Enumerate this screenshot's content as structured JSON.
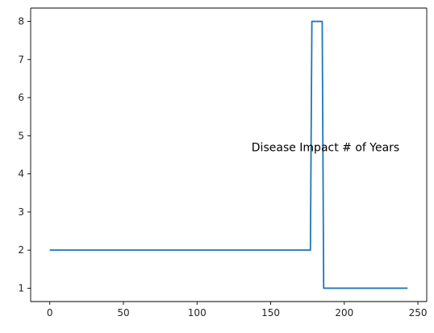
{
  "chart_data": {
    "type": "line",
    "title": "",
    "xlabel": "",
    "ylabel": "",
    "xlim": [
      -13,
      256
    ],
    "ylim": [
      0.65,
      8.35
    ],
    "x_ticks": [
      0,
      50,
      100,
      150,
      200,
      250
    ],
    "y_ticks": [
      1,
      2,
      3,
      4,
      5,
      6,
      7,
      8
    ],
    "x_tick_labels": [
      "0",
      "50",
      "100",
      "150",
      "200",
      "250"
    ],
    "y_tick_labels": [
      "1",
      "2",
      "3",
      "4",
      "5",
      "6",
      "7",
      "8"
    ],
    "grid": false,
    "legend": "none",
    "series": [
      {
        "color": "#1f77b4",
        "points": [
          [
            0,
            2
          ],
          [
            177,
            2
          ],
          [
            178,
            8
          ],
          [
            185,
            8
          ],
          [
            186,
            1
          ],
          [
            243,
            1
          ]
        ]
      }
    ],
    "annotations": [
      {
        "text": "Disease Impact # of Years",
        "x": 137,
        "y": 4.7
      }
    ]
  }
}
